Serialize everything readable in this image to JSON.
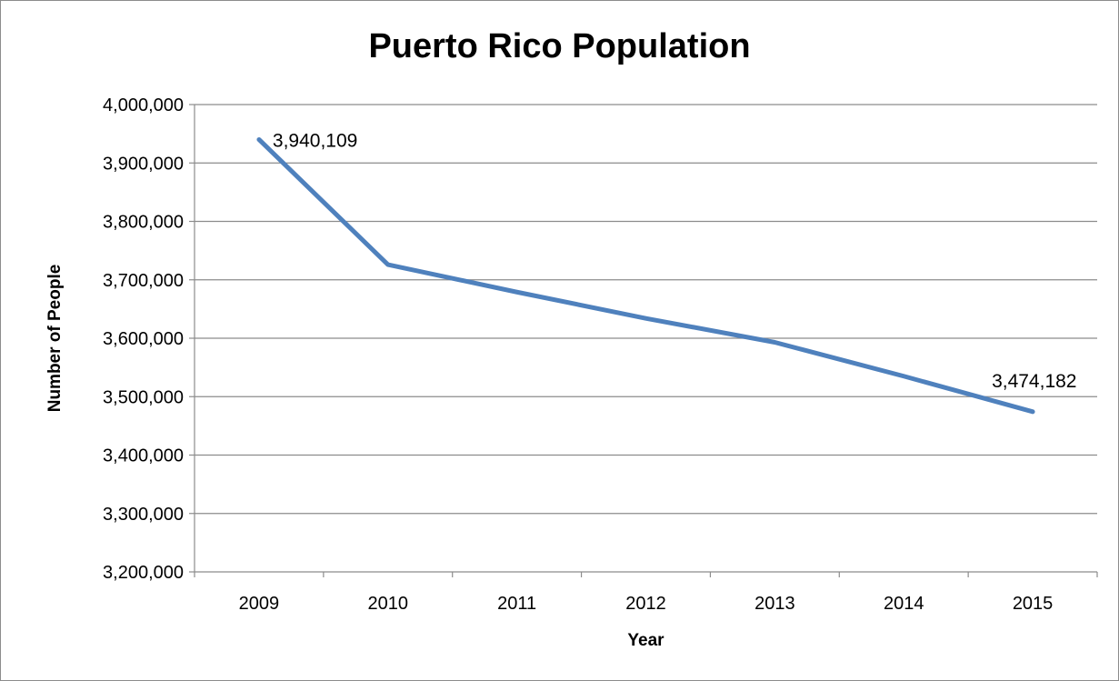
{
  "chart_data": {
    "type": "line",
    "title": "Puerto Rico Population",
    "xlabel": "Year",
    "ylabel": "Number of People",
    "categories": [
      "2009",
      "2010",
      "2011",
      "2012",
      "2013",
      "2014",
      "2015"
    ],
    "series": [
      {
        "values": [
          3940109,
          3726000,
          3679000,
          3634000,
          3593000,
          3535000,
          3474182
        ],
        "color": "#4f81bd"
      }
    ],
    "ylim": [
      3200000,
      4000000
    ],
    "yticks": [
      3200000,
      3300000,
      3400000,
      3500000,
      3600000,
      3700000,
      3800000,
      3900000,
      4000000
    ],
    "ytick_labels": [
      "3,200,000",
      "3,300,000",
      "3,400,000",
      "3,500,000",
      "3,600,000",
      "3,700,000",
      "3,800,000",
      "3,900,000",
      "4,000,000"
    ],
    "data_labels": [
      {
        "index": 0,
        "text": "3,940,109"
      },
      {
        "index": 6,
        "text": "3,474,182"
      }
    ],
    "grid": "horizontal",
    "legend": "none"
  }
}
